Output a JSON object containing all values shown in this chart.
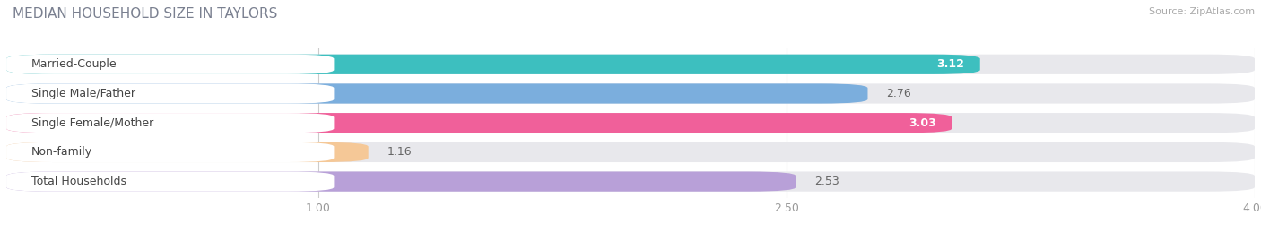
{
  "title": "MEDIAN HOUSEHOLD SIZE IN TAYLORS",
  "source": "Source: ZipAtlas.com",
  "categories": [
    "Married-Couple",
    "Single Male/Father",
    "Single Female/Mother",
    "Non-family",
    "Total Households"
  ],
  "values": [
    3.12,
    2.76,
    3.03,
    1.16,
    2.53
  ],
  "value_labels": [
    "3.12",
    "2.76",
    "3.03",
    "1.16",
    "2.53"
  ],
  "bar_colors": [
    "#3DBFBF",
    "#7BAEDD",
    "#F0609A",
    "#F5C897",
    "#B8A0D8"
  ],
  "bar_bg_color": "#E8E8EC",
  "label_bg_color": "#FFFFFF",
  "xlim_data": [
    0,
    4.0
  ],
  "xticks": [
    1.0,
    2.5,
    4.0
  ],
  "figsize": [
    14.06,
    2.69
  ],
  "dpi": 100,
  "title_fontsize": 11,
  "label_fontsize": 9,
  "value_fontsize": 9,
  "value_inside_colors": [
    "#FFFFFF",
    "#555555",
    "#FFFFFF",
    "#555555",
    "#555555"
  ],
  "value_inside": [
    true,
    false,
    true,
    false,
    false
  ]
}
